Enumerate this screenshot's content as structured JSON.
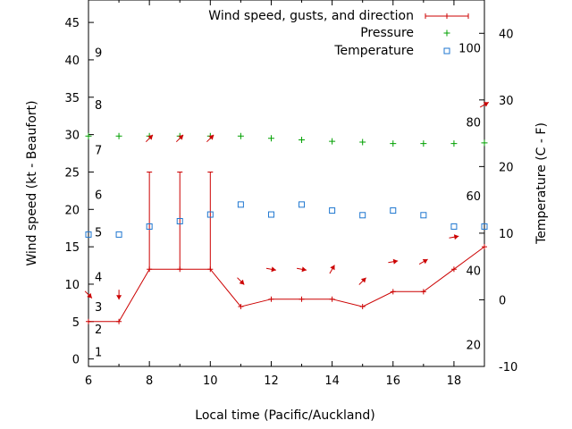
{
  "chart_data": {
    "type": "line",
    "xlabel": "Local time (Pacific/Auckland)",
    "ylabel": "Wind speed (kt - Beaufort)",
    "y2label": "Temperature (C - F)",
    "x_ticks": [
      "6",
      "8",
      "10",
      "12",
      "14",
      "16",
      "18"
    ],
    "xlim": [
      6,
      19
    ],
    "ylim": [
      -1,
      48
    ],
    "y_ticks": [
      "0",
      "5",
      "10",
      "15",
      "20",
      "25",
      "30",
      "35",
      "40",
      "45"
    ],
    "y2lim": [
      -10,
      45
    ],
    "y2_ticks": [
      "-10",
      "0",
      "10",
      "20",
      "30",
      "40"
    ],
    "beaufort_labels": [
      {
        "label": "1",
        "y": 1
      },
      {
        "label": "2",
        "y": 4
      },
      {
        "label": "3",
        "y": 7
      },
      {
        "label": "4",
        "y": 11
      },
      {
        "label": "5",
        "y": 17
      },
      {
        "label": "6",
        "y": 22
      },
      {
        "label": "7",
        "y": 28
      },
      {
        "label": "8",
        "y": 34
      },
      {
        "label": "9",
        "y": 41
      }
    ],
    "fahrenheit_labels": [
      {
        "label": "20",
        "temp_c": -6.7
      },
      {
        "label": "40",
        "temp_c": 4.4
      },
      {
        "label": "60",
        "temp_c": 15.6
      },
      {
        "label": "80",
        "temp_c": 26.7
      },
      {
        "label": "100",
        "temp_c": 37.8
      }
    ],
    "legend": {
      "placement": "top-right",
      "entries": [
        "Wind speed, gusts, and direction",
        "Pressure",
        "Temperature"
      ]
    },
    "series": [
      {
        "name": "Wind speed, gusts, and direction",
        "color": "#cc0000",
        "x": [
          6,
          7,
          8,
          9,
          10,
          11,
          12,
          13,
          14,
          15,
          16,
          17,
          18,
          19
        ],
        "values": [
          5,
          5,
          12,
          12,
          12,
          7,
          8,
          8,
          8,
          7,
          9,
          9,
          12,
          15
        ],
        "gusts": [
          null,
          null,
          25,
          25,
          25,
          null,
          null,
          null,
          null,
          null,
          null,
          null,
          null,
          null
        ],
        "arrows": [
          {
            "x": 6,
            "y": 8.6,
            "dir_deg": 135
          },
          {
            "x": 7,
            "y": 8.6,
            "dir_deg": 180
          },
          {
            "x": 8,
            "y": 29.5,
            "dir_deg": 45
          },
          {
            "x": 9,
            "y": 29.5,
            "dir_deg": 45
          },
          {
            "x": 10,
            "y": 29.5,
            "dir_deg": 45
          },
          {
            "x": 11,
            "y": 10.4,
            "dir_deg": 135
          },
          {
            "x": 12,
            "y": 12.0,
            "dir_deg": 100
          },
          {
            "x": 13,
            "y": 12.0,
            "dir_deg": 100
          },
          {
            "x": 14,
            "y": 12.0,
            "dir_deg": 30
          },
          {
            "x": 15,
            "y": 10.4,
            "dir_deg": 45
          },
          {
            "x": 16,
            "y": 13.0,
            "dir_deg": 80
          },
          {
            "x": 17,
            "y": 13.0,
            "dir_deg": 60
          },
          {
            "x": 18,
            "y": 16.3,
            "dir_deg": 80
          },
          {
            "x": 19,
            "y": 34.0,
            "dir_deg": 60
          }
        ]
      },
      {
        "name": "Pressure",
        "color": "#00a000",
        "x": [
          6,
          7,
          8,
          9,
          10,
          11,
          12,
          13,
          14,
          15,
          16,
          17,
          18,
          19
        ],
        "values": [
          29.8,
          29.8,
          29.8,
          29.8,
          29.8,
          29.8,
          29.5,
          29.3,
          29.1,
          29.0,
          28.8,
          28.8,
          28.8,
          28.9
        ]
      },
      {
        "name": "Temperature",
        "color": "#1f77d0",
        "axis": "right",
        "x": [
          6,
          7,
          8,
          9,
          10,
          11,
          12,
          13,
          14,
          15,
          16,
          17,
          18,
          19
        ],
        "values": [
          9.8,
          9.8,
          11.0,
          11.8,
          12.8,
          14.3,
          12.8,
          14.3,
          13.4,
          12.7,
          13.4,
          12.7,
          11.0,
          11.0
        ]
      }
    ]
  }
}
